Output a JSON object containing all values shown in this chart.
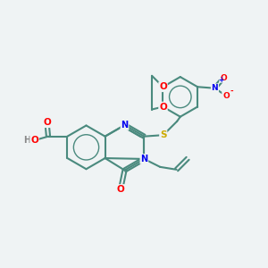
{
  "bg_color": "#eff3f4",
  "bond_color": "#4a8a7e",
  "atom_colors": {
    "O": "#ff0000",
    "N": "#0000ee",
    "S": "#ccaa00",
    "H": "#888888",
    "C": "#4a8a7e"
  },
  "title": ""
}
